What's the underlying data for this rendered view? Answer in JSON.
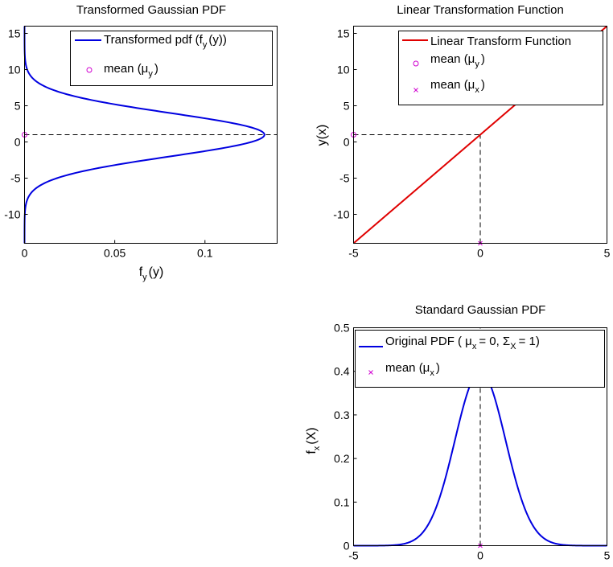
{
  "chart_data": [
    {
      "id": "transformed",
      "type": "line",
      "title": "Transformed Gaussian PDF",
      "xlabel": "f",
      "xlabel_sub": "y",
      "xlabel_tail": "(y)",
      "ylabel": "",
      "xlim": [
        0,
        0.14
      ],
      "ylim": [
        -14,
        16
      ],
      "xticks": [
        0,
        0.05,
        0.1
      ],
      "xtick_labels": [
        "0",
        "0.05",
        "0.1"
      ],
      "yticks": [
        -10,
        -5,
        0,
        5,
        10,
        15
      ],
      "ytick_labels": [
        "-10",
        "-5",
        "0",
        "5",
        "10",
        "15"
      ],
      "grid": false,
      "legend_position": "top-right",
      "series": [
        {
          "name": "Transformed pdf (f",
          "name_sub": "y",
          "name_tail": "(y))",
          "kind": "curve",
          "color": "#0000e0",
          "mu": 1,
          "sigma": 3,
          "y_range": [
            -14,
            16
          ]
        }
      ],
      "markers": [
        {
          "name": "mean (μ",
          "name_sub": "y",
          "name_tail": ")",
          "symbol": "circle",
          "color": "#d000d0",
          "x": 0,
          "y": 1
        }
      ],
      "guides": {
        "hline_y": 1
      }
    },
    {
      "id": "linear",
      "type": "line",
      "title": "Linear Transformation Function",
      "xlabel": "",
      "ylabel": "y(x)",
      "xlim": [
        -5,
        5
      ],
      "ylim": [
        -14,
        16
      ],
      "xticks": [
        -5,
        0,
        5
      ],
      "xtick_labels": [
        "-5",
        "0",
        "5"
      ],
      "yticks": [
        -10,
        -5,
        0,
        5,
        10,
        15
      ],
      "ytick_labels": [
        "-10",
        "-5",
        "0",
        "5",
        "10",
        "15"
      ],
      "grid": false,
      "legend_position": "top-right",
      "series": [
        {
          "name": "Linear Transform Function",
          "kind": "line",
          "color": "#e00000",
          "x": [
            -5,
            5
          ],
          "y": [
            -14,
            16
          ]
        }
      ],
      "markers": [
        {
          "name": "mean (μ",
          "name_sub": "y",
          "name_tail": ")",
          "symbol": "circle",
          "color": "#d000d0",
          "x": -5,
          "y": 1
        },
        {
          "name": "mean (μ",
          "name_sub": "x",
          "name_tail": ")",
          "symbol": "x",
          "color": "#d000d0",
          "x": 0,
          "y": -14
        }
      ],
      "guides": {
        "hline_y": 1,
        "vline_x": 0
      }
    },
    {
      "id": "standard",
      "type": "line",
      "title": "Standard Gaussian PDF",
      "xlabel": "",
      "ylabel": "f",
      "ylabel_sub": "x",
      "ylabel_tail": "(X)",
      "xlim": [
        -5,
        5
      ],
      "ylim": [
        0,
        0.5
      ],
      "xticks": [
        -5,
        0,
        5
      ],
      "xtick_labels": [
        "-5",
        "0",
        "5"
      ],
      "yticks": [
        0,
        0.1,
        0.2,
        0.3,
        0.4,
        0.5
      ],
      "ytick_labels": [
        "0",
        "0.1",
        "0.2",
        "0.3",
        "0.4",
        "0.5"
      ],
      "grid": false,
      "legend_position": "top-right",
      "series": [
        {
          "name": "Original  PDF ( μ",
          "name_sub": "x",
          "name_tail": "= 0,  Σ",
          "name_sub2": "X",
          "name_tail2": "= 1)",
          "kind": "curve",
          "color": "#0000e0",
          "mu": 0,
          "sigma": 1,
          "x_range": [
            -5,
            5
          ]
        }
      ],
      "markers": [
        {
          "name": "mean (μ",
          "name_sub": "x",
          "name_tail": ")",
          "symbol": "x",
          "color": "#d000d0",
          "x": 0,
          "y": 0
        }
      ],
      "guides": {
        "vline_x": 0
      }
    }
  ]
}
